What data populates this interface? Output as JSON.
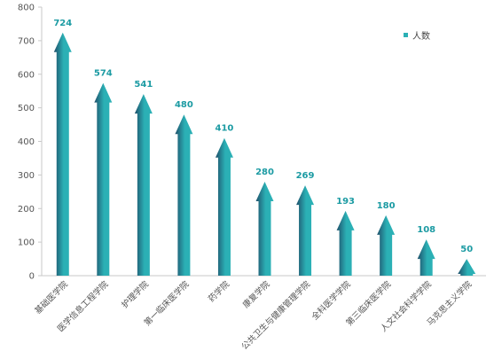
{
  "chart_data": {
    "type": "bar",
    "title": "",
    "xlabel": "",
    "ylabel": "",
    "ylim": [
      0,
      800
    ],
    "yticks": [
      0,
      100,
      200,
      300,
      400,
      500,
      600,
      700,
      800
    ],
    "categories": [
      "基础医学院",
      "医学信息工程学院",
      "护理学院",
      "第一临床医学院",
      "药学院",
      "康复学院",
      "公共卫生与健康管理学院",
      "全科医学学院",
      "第三临床医学院",
      "人文社会科学学院",
      "马克思主义学院"
    ],
    "series": [
      {
        "name": "人数",
        "values": [
          724,
          574,
          541,
          480,
          410,
          280,
          269,
          193,
          180,
          108,
          50
        ],
        "data_labels": [
          "724",
          "574",
          "541",
          "480",
          "410",
          "280",
          "269",
          "193",
          "180",
          "108",
          "50"
        ]
      }
    ],
    "grid": false,
    "legend_position": "top-right",
    "colors": {
      "bar_light": "#2bb0b5",
      "bar_dark": "#1f4f6a",
      "label": "#1c9ba3",
      "axis": "#c9c9c9",
      "tick_label": "#555555"
    }
  }
}
